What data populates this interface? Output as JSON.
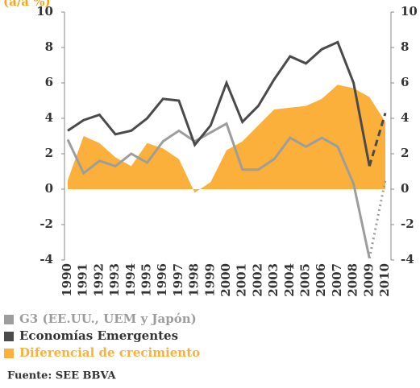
{
  "chart_data": {
    "type": "line",
    "title": "(a/a %)",
    "x": [
      "1990",
      "1991",
      "1992",
      "1993",
      "1994",
      "1995",
      "1996",
      "1997",
      "1998",
      "1999",
      "2000",
      "2001",
      "2002",
      "2003",
      "2004",
      "2005",
      "2006",
      "2007",
      "2008",
      "2009",
      "2010"
    ],
    "ylim": [
      -4,
      10
    ],
    "yticks": [
      -4,
      -2,
      0,
      2,
      4,
      6,
      8,
      10
    ],
    "series": [
      {
        "name": "G3 (EE.UU., UEM y Japón)",
        "color": "#9d9d9d",
        "kind": "line",
        "last_segment_style": "dotted",
        "values": [
          2.8,
          0.9,
          1.6,
          1.3,
          2.0,
          1.5,
          2.7,
          3.3,
          2.7,
          3.2,
          3.7,
          1.1,
          1.1,
          1.7,
          2.9,
          2.4,
          2.9,
          2.4,
          0.3,
          -3.9,
          0.5
        ]
      },
      {
        "name": "Economías Emergentes",
        "color": "#4a4a4a",
        "kind": "line",
        "last_segment_style": "dashed",
        "values": [
          3.3,
          3.9,
          4.2,
          3.1,
          3.3,
          4.0,
          5.1,
          5.0,
          2.5,
          3.6,
          6.0,
          3.8,
          4.7,
          6.2,
          7.5,
          7.1,
          7.9,
          8.3,
          6.0,
          1.3,
          4.3
        ]
      },
      {
        "name": "Diferencial de crecimiento",
        "color": "#fbb03b",
        "kind": "area",
        "values": [
          0.5,
          3.0,
          2.6,
          1.8,
          1.3,
          2.6,
          2.3,
          1.7,
          -0.2,
          0.4,
          2.2,
          2.7,
          3.6,
          4.5,
          4.6,
          4.7,
          5.1,
          5.9,
          5.7,
          5.2,
          3.8
        ]
      }
    ],
    "source": "Fuente: SEE BBVA"
  }
}
